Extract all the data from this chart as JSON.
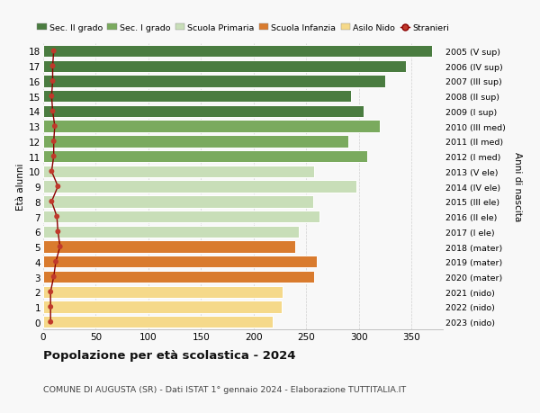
{
  "ages": [
    18,
    17,
    16,
    15,
    14,
    13,
    12,
    11,
    10,
    9,
    8,
    7,
    6,
    5,
    4,
    3,
    2,
    1,
    0
  ],
  "bar_values": [
    370,
    345,
    325,
    293,
    305,
    320,
    290,
    308,
    258,
    298,
    257,
    263,
    243,
    240,
    260,
    258,
    228,
    227,
    218
  ],
  "right_labels": [
    "2005 (V sup)",
    "2006 (IV sup)",
    "2007 (III sup)",
    "2008 (II sup)",
    "2009 (I sup)",
    "2010 (III med)",
    "2011 (II med)",
    "2012 (I med)",
    "2013 (V ele)",
    "2014 (IV ele)",
    "2015 (III ele)",
    "2016 (II ele)",
    "2017 (I ele)",
    "2018 (mater)",
    "2019 (mater)",
    "2020 (mater)",
    "2021 (nido)",
    "2022 (nido)",
    "2023 (nido)"
  ],
  "bar_colors": [
    "#4a7c40",
    "#4a7c40",
    "#4a7c40",
    "#4a7c40",
    "#4a7c40",
    "#7aaa5e",
    "#7aaa5e",
    "#7aaa5e",
    "#c8deb8",
    "#c8deb8",
    "#c8deb8",
    "#c8deb8",
    "#c8deb8",
    "#d97b2e",
    "#d97b2e",
    "#d97b2e",
    "#f5d98a",
    "#f5d98a",
    "#f5d98a"
  ],
  "stranieri_values": [
    10,
    9,
    9,
    8,
    9,
    11,
    10,
    10,
    8,
    14,
    8,
    13,
    14,
    16,
    12,
    10,
    7,
    7,
    7
  ],
  "legend_labels": [
    "Sec. II grado",
    "Sec. I grado",
    "Scuola Primaria",
    "Scuola Infanzia",
    "Asilo Nido",
    "Stranieri"
  ],
  "legend_colors": [
    "#4a7c40",
    "#7aaa5e",
    "#c8deb8",
    "#d97b2e",
    "#f5d98a",
    "#c0392b"
  ],
  "ylabel_left": "Età alunni",
  "ylabel_right": "Anni di nascita",
  "title": "Popolazione per età scolastica - 2024",
  "subtitle": "COMUNE DI AUGUSTA (SR) - Dati ISTAT 1° gennaio 2024 - Elaborazione TUTTITALIA.IT",
  "xlim": [
    0,
    380
  ],
  "xticks": [
    0,
    50,
    100,
    150,
    200,
    250,
    300,
    350
  ],
  "bg_color": "#f8f8f8"
}
